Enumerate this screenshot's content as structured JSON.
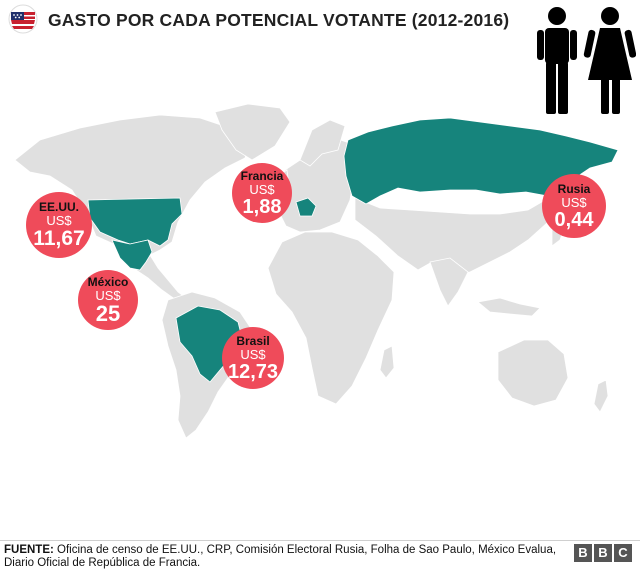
{
  "header": {
    "title": "GASTO POR CADA POTENCIAL VOTANTE (2012-2016)",
    "flag_icon": "us-flag-badge-icon",
    "people_icon": "man-woman-icon"
  },
  "colors": {
    "land": "#e0e0e0",
    "highlight": "#16847c",
    "bubble": "#ef4b5a",
    "bubble_text": "#ffffff",
    "country_label": "#111111"
  },
  "bubbles": [
    {
      "country": "EE.UU.",
      "currency": "US$",
      "value": "11,67"
    },
    {
      "country": "México",
      "currency": "US$",
      "value": "25"
    },
    {
      "country": "Francia",
      "currency": "US$",
      "value": "1,88"
    },
    {
      "country": "Brasil",
      "currency": "US$",
      "value": "12,73"
    },
    {
      "country": "Rusia",
      "currency": "US$",
      "value": "0,44"
    }
  ],
  "footer": {
    "source_label": "FUENTE:",
    "source_text": " Oficina de censo de EE.UU., CRP, Comisión Electoral Rusia, Folha de Sao Paulo, México Evalua, Diario Oficial de República de Francia.",
    "logo_letters": [
      "B",
      "B",
      "C"
    ]
  }
}
